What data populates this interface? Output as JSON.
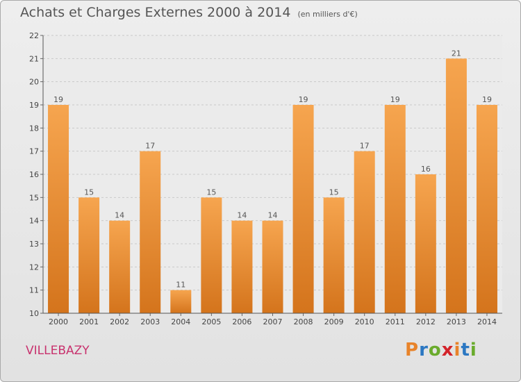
{
  "header": {
    "title": "Achats et Charges Externes 2000 à 2014",
    "unit": "(en milliers d'€)"
  },
  "footer": {
    "commune": "VILLEBAZY",
    "logo_letters": [
      "P",
      "r",
      "o",
      "x",
      "i",
      "t",
      "i"
    ]
  },
  "colors": {
    "bar_light": "#f6a54f",
    "bar_dark": "#d4741c",
    "commune": "#c8326e",
    "logo": [
      "#e8832a",
      "#2b77c2",
      "#6aab2c",
      "#d3232a",
      "#e8832a",
      "#2b77c2",
      "#6aab2c"
    ]
  },
  "chart_data": {
    "type": "bar",
    "title": "Achats et Charges Externes 2000 à 2014",
    "subtitle": "(en milliers d'€)",
    "categories": [
      "2000",
      "2001",
      "2002",
      "2003",
      "2004",
      "2005",
      "2006",
      "2007",
      "2008",
      "2009",
      "2010",
      "2011",
      "2012",
      "2013",
      "2014"
    ],
    "values": [
      19,
      15,
      14,
      17,
      11,
      15,
      14,
      14,
      19,
      15,
      17,
      19,
      16,
      21,
      19
    ],
    "ylim": [
      10,
      22
    ],
    "yticks": [
      10,
      11,
      12,
      13,
      14,
      15,
      16,
      17,
      18,
      19,
      20,
      21,
      22
    ],
    "grid": true,
    "xlabel": "",
    "ylabel": ""
  }
}
